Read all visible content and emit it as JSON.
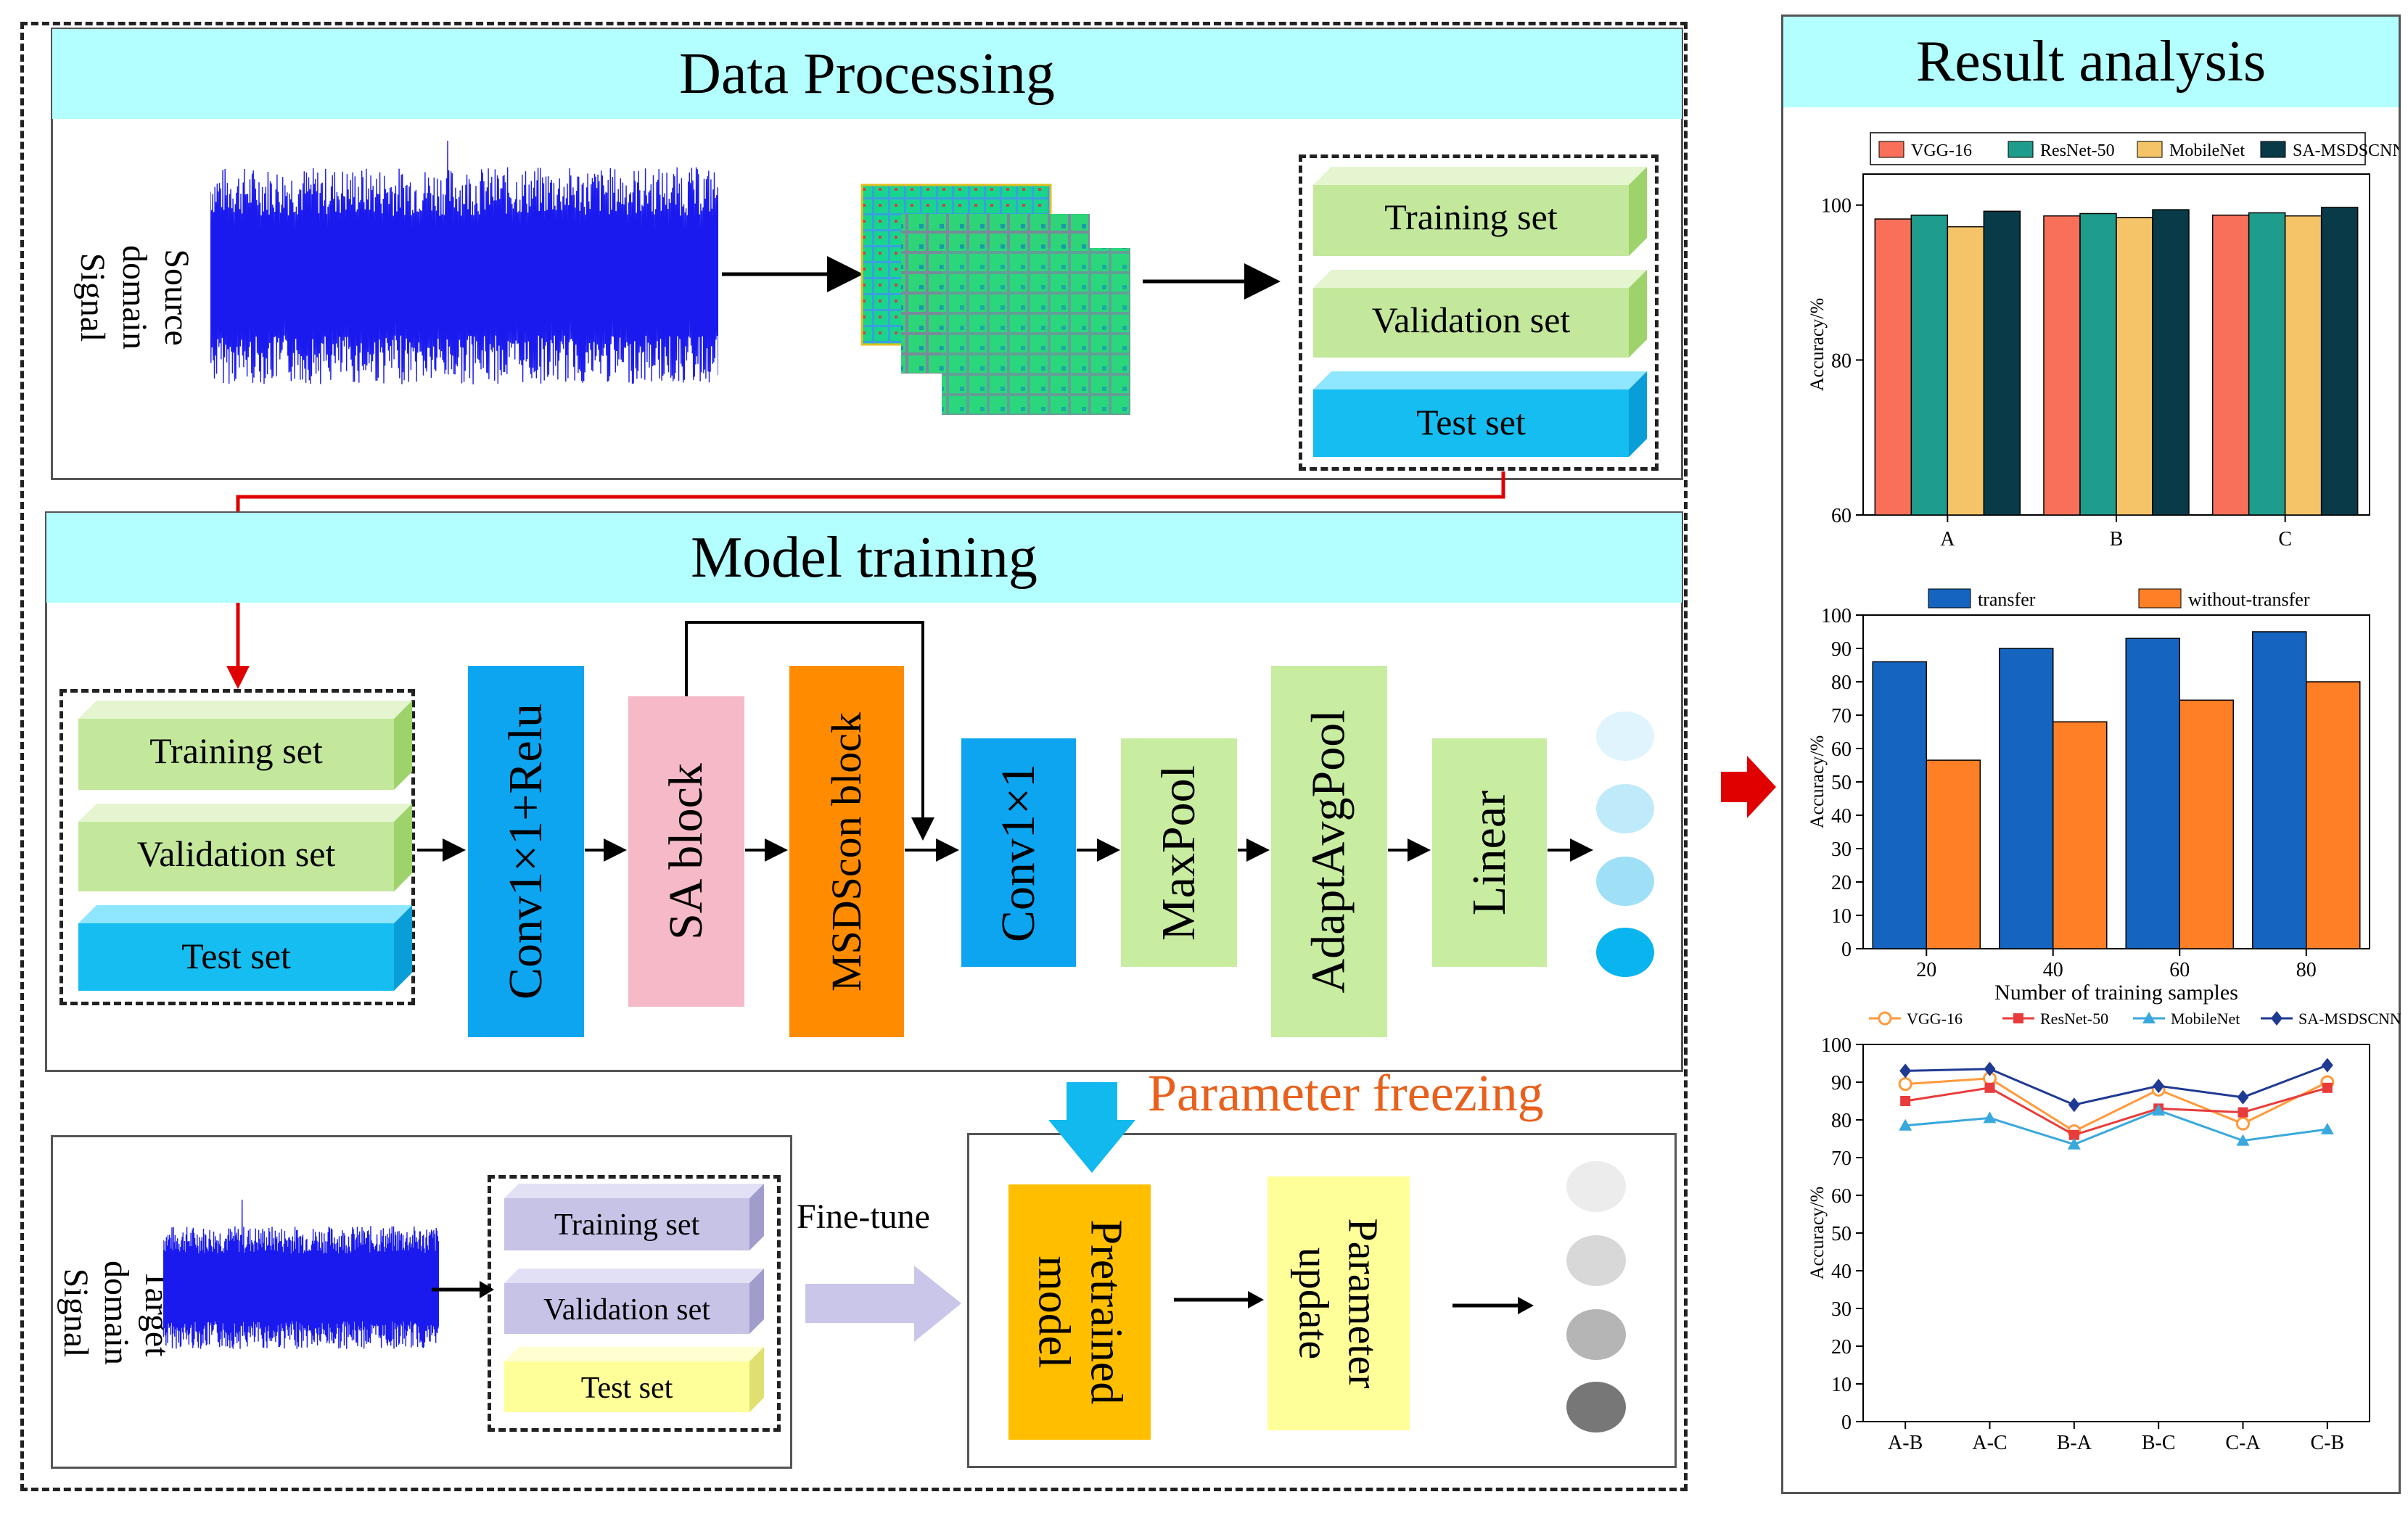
{
  "data_processing": {
    "title": "Data Processing",
    "source_signal_label": "Source domain Signal",
    "sets": {
      "training": "Training set",
      "validation": "Validation set",
      "test": "Test set"
    }
  },
  "model_training": {
    "title": "Model training",
    "sets": {
      "training": "Training set",
      "validation": "Validation set",
      "test": "Test set"
    },
    "blocks": {
      "conv_relu": "Conv1×1+Relu",
      "sa_block": "SA block",
      "msdscon": "MSDScon block",
      "conv1": "Conv1×1",
      "maxpool": "MaxPool",
      "adapt": "AdaptAvgPool",
      "linear": "Linear"
    }
  },
  "transfer": {
    "target_signal_label": "Target domain Signal",
    "sets": {
      "training": "Training set",
      "validation": "Validation set",
      "test": "Test set"
    },
    "fine_tune": "Fine-tune",
    "parameter_freezing": "Parameter freezing",
    "pretrained": "Pretrained model",
    "param_update": "Parameter update"
  },
  "result_analysis": {
    "title": "Result analysis"
  },
  "colors": {
    "header_bg": "#b3ffff",
    "light_green": "#c3e89c",
    "cyan_box": "#15bdf1",
    "blue_block": "#0ea5f0",
    "pink_block": "#f5b9c8",
    "orange_block": "#ff8c00",
    "green_block": "#c8eca0",
    "lavender": "#c7c3e6",
    "light_yellow": "#ffff99",
    "gold": "#ffbe00",
    "red_arrow": "#e00000"
  },
  "chart_data": [
    {
      "type": "bar",
      "categories": [
        "A",
        "B",
        "C"
      ],
      "series": [
        {
          "name": "VGG-16",
          "values": [
            98.2,
            98.6,
            98.7
          ],
          "color": "#f9705a"
        },
        {
          "name": "ResNet-50",
          "values": [
            98.7,
            98.9,
            99.0
          ],
          "color": "#1e9c8c"
        },
        {
          "name": "MobileNet",
          "values": [
            97.2,
            98.4,
            98.6
          ],
          "color": "#f5c468"
        },
        {
          "name": "SA-MSDSCNN",
          "values": [
            99.2,
            99.4,
            99.7
          ],
          "color": "#083a48"
        }
      ],
      "ylabel": "Accuracy/%",
      "ylim": [
        60,
        104
      ],
      "yticks": [
        60,
        80,
        100
      ]
    },
    {
      "type": "bar",
      "categories": [
        "20",
        "40",
        "60",
        "80"
      ],
      "series": [
        {
          "name": "transfer",
          "values": [
            86,
            90,
            93,
            95
          ],
          "color": "#1565c0"
        },
        {
          "name": "without-transfer",
          "values": [
            56.5,
            68,
            74.5,
            80
          ],
          "color": "#ff7f27"
        }
      ],
      "xlabel": "Number of training samples",
      "ylabel": "Accuracy/%",
      "ylim": [
        0,
        100
      ],
      "yticks": [
        0,
        10,
        20,
        30,
        40,
        50,
        60,
        70,
        80,
        90,
        100
      ]
    },
    {
      "type": "line",
      "categories": [
        "A-B",
        "A-C",
        "B-A",
        "B-C",
        "C-A",
        "C-B"
      ],
      "series": [
        {
          "name": "VGG-16",
          "values": [
            89.5,
            91,
            77,
            88,
            79,
            90
          ],
          "color": "#ff9a3c",
          "marker": "circle"
        },
        {
          "name": "ResNet-50",
          "values": [
            85,
            88.5,
            76,
            83,
            82,
            88.5
          ],
          "color": "#e83c3c",
          "marker": "square"
        },
        {
          "name": "MobileNet",
          "values": [
            78.5,
            80.5,
            73.5,
            82.5,
            74.5,
            77.5
          ],
          "color": "#3aa8dc",
          "marker": "triangle"
        },
        {
          "name": "SA-MSDSCNN",
          "values": [
            93,
            93.5,
            84,
            89,
            86,
            94.5
          ],
          "color": "#1f3a93",
          "marker": "diamond"
        }
      ],
      "ylabel": "Accuracy/%",
      "ylim": [
        0,
        100
      ],
      "yticks": [
        0,
        10,
        20,
        30,
        40,
        50,
        60,
        70,
        80,
        90,
        100
      ]
    }
  ]
}
